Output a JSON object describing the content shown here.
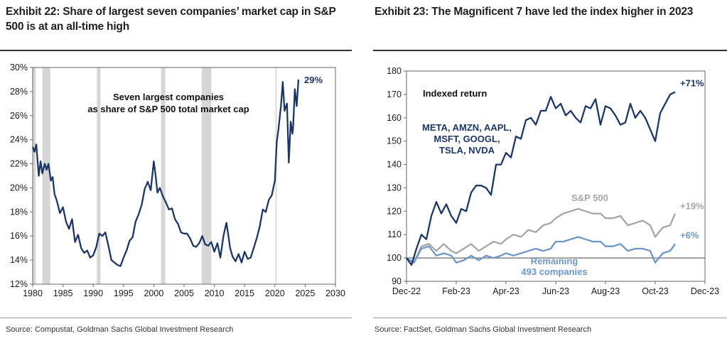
{
  "left": {
    "title": "Exhibit 22: Share of largest seven companies’ market cap in S&P 500 is at an all-time high",
    "source": "Source: Compustat, Goldman Sachs Global Investment Research",
    "colors": {
      "line": "#1c3766",
      "recession": "#d6d6d6",
      "frame": "#666666"
    },
    "chart_data": {
      "type": "line",
      "title": "",
      "xlabel": "",
      "ylabel": "",
      "xlim": [
        1980,
        2030
      ],
      "ylim": [
        12,
        30
      ],
      "x_ticks": [
        "1980",
        "1985",
        "1990",
        "1995",
        "2000",
        "2005",
        "2010",
        "2015",
        "2020",
        "2025",
        "2030"
      ],
      "y_ticks": [
        "12%",
        "14%",
        "16%",
        "18%",
        "20%",
        "22%",
        "24%",
        "26%",
        "28%",
        "30%"
      ],
      "annotation": "Seven largest companies\nas share of S&P 500 total market cap",
      "end_label": "29%",
      "recession_bands": [
        [
          1980.0,
          1980.5
        ],
        [
          1981.6,
          1982.9
        ],
        [
          1990.6,
          1991.2
        ],
        [
          2001.2,
          2001.9
        ],
        [
          2007.9,
          2009.5
        ],
        [
          2020.1,
          2020.3
        ]
      ],
      "series": [
        {
          "x": [
            1980,
            1980.3,
            1980.6,
            1981,
            1981.3,
            1981.6,
            1982,
            1982.3,
            1982.6,
            1983,
            1983.3,
            1983.6,
            1984,
            1984.5,
            1985,
            1985.5,
            1986,
            1986.5,
            1987,
            1987.5,
            1988,
            1988.5,
            1989,
            1989.5,
            1990,
            1990.5,
            1991,
            1991.5,
            1992,
            1992.5,
            1993,
            1993.5,
            1994,
            1994.5,
            1995,
            1995.5,
            1996,
            1996.5,
            1997,
            1997.5,
            1998,
            1998.5,
            1999,
            1999.5,
            2000,
            2000.3,
            2000.6,
            2001,
            2001.5,
            2002,
            2002.5,
            2003,
            2003.5,
            2004,
            2004.5,
            2005,
            2005.5,
            2006,
            2006.5,
            2007,
            2007.5,
            2008,
            2008.5,
            2009,
            2009.5,
            2010,
            2010.5,
            2011,
            2011.5,
            2012,
            2012.3,
            2012.6,
            2013,
            2013.5,
            2014,
            2014.5,
            2015,
            2015.5,
            2016,
            2016.5,
            2017,
            2017.5,
            2018,
            2018.5,
            2019,
            2019.5,
            2020,
            2020.3,
            2020.6,
            2021,
            2021.3,
            2021.6,
            2022,
            2022.3,
            2022.6,
            2022.9,
            2023,
            2023.3,
            2023.6,
            2023.9
          ],
          "values": [
            23.4,
            23.0,
            23.6,
            21.0,
            22.2,
            21.2,
            22.0,
            21.5,
            22.0,
            20.6,
            20.9,
            19.5,
            18.9,
            17.9,
            18.4,
            17.2,
            16.6,
            17.4,
            15.5,
            16.1,
            15.0,
            14.6,
            14.8,
            14.2,
            14.4,
            15.1,
            16.2,
            16.0,
            16.3,
            15.2,
            14.0,
            13.8,
            13.6,
            13.5,
            14.2,
            14.8,
            15.6,
            15.9,
            17.2,
            17.8,
            18.6,
            19.9,
            20.5,
            19.8,
            22.2,
            21.0,
            19.6,
            20.0,
            19.3,
            18.8,
            18.2,
            18.3,
            17.4,
            17.0,
            16.3,
            16.2,
            16.2,
            15.8,
            15.2,
            15.1,
            15.4,
            16.0,
            15.3,
            15.2,
            15.5,
            14.7,
            15.4,
            14.2,
            16.0,
            17.1,
            16.1,
            15.0,
            14.3,
            13.9,
            14.5,
            13.8,
            14.7,
            14.1,
            14.2,
            15.0,
            15.8,
            16.8,
            18.2,
            18.0,
            19.0,
            19.4,
            20.6,
            23.8,
            24.9,
            26.8,
            28.8,
            26.4,
            27.0,
            22.1,
            25.5,
            24.5,
            25.0,
            28.2,
            26.8,
            29.0
          ]
        }
      ]
    }
  },
  "right": {
    "title": "Exhibit 23: The Magnificent 7 have led the index higher in 2023",
    "source": "Source: FactSet, Goldman Sachs Global Investment Research",
    "colors": {
      "mag7": "#1c3766",
      "sp500": "#a6a6a6",
      "remaining": "#6e96c8",
      "frame": "#666666",
      "baseline": "#444444"
    },
    "chart_data": {
      "type": "line",
      "title": "Indexed return",
      "xlabel": "",
      "ylabel": "",
      "ylim": [
        90,
        180
      ],
      "x_ticks": [
        "Dec-22",
        "Feb-23",
        "Apr-23",
        "Jun-23",
        "Aug-23",
        "Oct-23",
        "Dec-23"
      ],
      "y_ticks": [
        "90",
        "100",
        "110",
        "120",
        "130",
        "140",
        "150",
        "160",
        "170",
        "180"
      ],
      "x_month_index": [
        0,
        2,
        4,
        6,
        8,
        10,
        12
      ],
      "series": [
        {
          "name": "META, AMZN, AAPL, MSFT, GOOGL, TSLA, NVDA",
          "end_label": "+71%",
          "x": [
            0,
            0.2,
            0.4,
            0.6,
            0.8,
            1.0,
            1.2,
            1.4,
            1.6,
            1.8,
            2.0,
            2.2,
            2.4,
            2.6,
            2.8,
            3.0,
            3.2,
            3.4,
            3.6,
            3.8,
            4.0,
            4.2,
            4.4,
            4.6,
            4.8,
            5.0,
            5.2,
            5.4,
            5.6,
            5.8,
            6.0,
            6.2,
            6.4,
            6.6,
            6.8,
            7.0,
            7.2,
            7.4,
            7.6,
            7.8,
            8.0,
            8.2,
            8.4,
            8.6,
            8.8,
            9.0,
            9.2,
            9.4,
            9.6,
            9.8,
            10.0,
            10.2,
            10.4,
            10.6,
            10.8
          ],
          "values": [
            100,
            97,
            104,
            110,
            108,
            118,
            124,
            119,
            123,
            118,
            115,
            121,
            120,
            128,
            131,
            131,
            130,
            127,
            140,
            140,
            145,
            143,
            152,
            151,
            159,
            160,
            157,
            163,
            163,
            169,
            164,
            166,
            161,
            163,
            160,
            158,
            165,
            164,
            168,
            157,
            165,
            164,
            161,
            157,
            158,
            166,
            160,
            163,
            160,
            155,
            150,
            162,
            166,
            170,
            171
          ]
        },
        {
          "name": "S&P 500",
          "end_label": "+19%",
          "x": [
            0,
            0.3,
            0.6,
            0.9,
            1.2,
            1.5,
            1.8,
            2.0,
            2.3,
            2.6,
            2.9,
            3.2,
            3.5,
            3.8,
            4.0,
            4.3,
            4.6,
            4.9,
            5.2,
            5.5,
            5.8,
            6.0,
            6.3,
            6.6,
            6.9,
            7.2,
            7.5,
            7.8,
            8.0,
            8.3,
            8.6,
            8.9,
            9.2,
            9.5,
            9.8,
            10.0,
            10.3,
            10.6,
            10.8
          ],
          "values": [
            100,
            98,
            105,
            106,
            103,
            106,
            103,
            102,
            104,
            106,
            103,
            105,
            107,
            106,
            108,
            110,
            109,
            112,
            111,
            114,
            115,
            117,
            119,
            120,
            121,
            120,
            119,
            119,
            117,
            117,
            118,
            114,
            115,
            116,
            114,
            109,
            113,
            114,
            119
          ]
        },
        {
          "name": "Remaining 493 companies",
          "end_label": "+6%",
          "x": [
            0,
            0.3,
            0.6,
            0.9,
            1.2,
            1.5,
            1.8,
            2.0,
            2.3,
            2.6,
            2.9,
            3.2,
            3.5,
            3.8,
            4.0,
            4.3,
            4.6,
            4.9,
            5.2,
            5.5,
            5.8,
            6.0,
            6.3,
            6.6,
            6.9,
            7.2,
            7.5,
            7.8,
            8.0,
            8.3,
            8.6,
            8.9,
            9.2,
            9.5,
            9.8,
            10.0,
            10.3,
            10.6,
            10.8
          ],
          "values": [
            100,
            98,
            104,
            105,
            101,
            102,
            101,
            98,
            99,
            101,
            99,
            101,
            100,
            101,
            102,
            101,
            102,
            103,
            104,
            103,
            104,
            107,
            107,
            108,
            109,
            108,
            107,
            107,
            105,
            105,
            106,
            103,
            104,
            104,
            103,
            98,
            102,
            103,
            106
          ]
        }
      ],
      "labels": {
        "mag7_lines": [
          "META, AMZN, AAPL,",
          "MSFT, GOOGL,",
          "TSLA, NVDA"
        ],
        "sp500": "S&P 500",
        "remaining_lines": [
          "Remaining",
          "493 companies"
        ]
      }
    }
  }
}
